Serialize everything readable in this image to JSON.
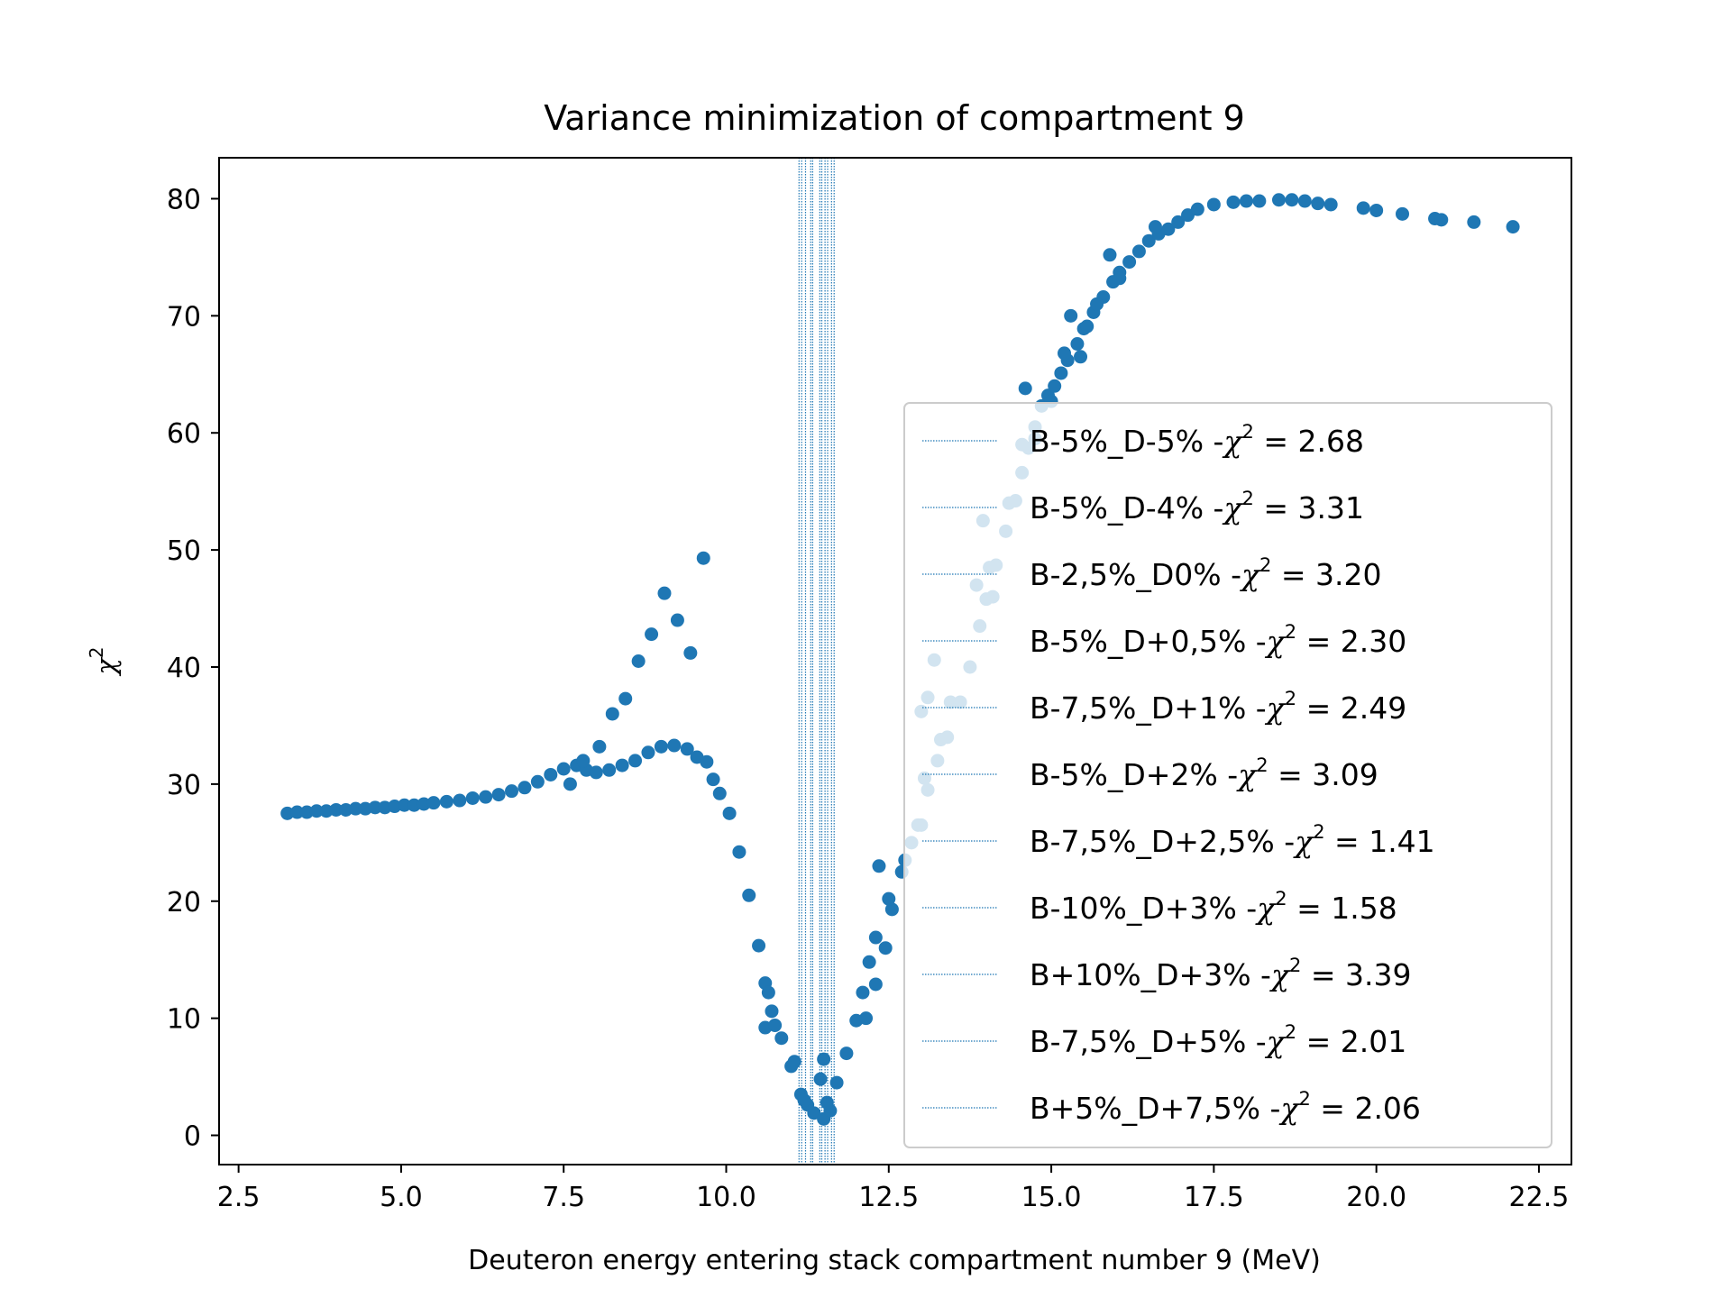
{
  "chart_data": {
    "type": "scatter",
    "title": "Variance minimization of compartment 9",
    "xlabel": "Deuteron energy entering stack compartment number 9 (MeV)",
    "ylabel": "χ2",
    "ylabel_parts": {
      "sym": "χ",
      "sup": "2"
    },
    "xlim": [
      2.2,
      23.0
    ],
    "ylim": [
      -2.5,
      83.5
    ],
    "x_ticks": [
      2.5,
      5.0,
      7.5,
      10.0,
      12.5,
      15.0,
      17.5,
      20.0,
      22.5
    ],
    "x_tick_labels": [
      "2.5",
      "5.0",
      "7.5",
      "10.0",
      "12.5",
      "15.0",
      "17.5",
      "20.0",
      "22.5"
    ],
    "y_ticks": [
      0,
      10,
      20,
      30,
      40,
      50,
      60,
      70,
      80
    ],
    "y_tick_labels": [
      "0",
      "10",
      "20",
      "30",
      "40",
      "50",
      "60",
      "70",
      "80"
    ],
    "grid": false,
    "legend_position": "right",
    "marker_color": "#1f77b4",
    "vline_color": "#1f77b4",
    "vlines": [
      {
        "x": 11.12,
        "label_prefix": "B-5%_D-5% -",
        "chi_value": "2.68"
      },
      {
        "x": 11.16,
        "label_prefix": "B-5%_D-4% -",
        "chi_value": "3.31"
      },
      {
        "x": 11.22,
        "label_prefix": "B-2,5%_D0% -",
        "chi_value": "3.20"
      },
      {
        "x": 11.3,
        "label_prefix": "B-5%_D+0,5% -",
        "chi_value": "2.30"
      },
      {
        "x": 11.33,
        "label_prefix": "B-7,5%_D+1% -",
        "chi_value": "2.49"
      },
      {
        "x": 11.44,
        "label_prefix": "B-5%_D+2% -",
        "chi_value": "3.09"
      },
      {
        "x": 11.47,
        "label_prefix": "B-7,5%_D+2,5% -",
        "chi_value": "1.41"
      },
      {
        "x": 11.52,
        "label_prefix": "B-10%_D+3% -",
        "chi_value": "1.58"
      },
      {
        "x": 11.56,
        "label_prefix": "B+10%_D+3% -",
        "chi_value": "3.39"
      },
      {
        "x": 11.62,
        "label_prefix": "B-7,5%_D+5% -",
        "chi_value": "2.01"
      },
      {
        "x": 11.66,
        "label_prefix": "B+5%_D+7,5% -",
        "chi_value": "2.06"
      }
    ],
    "series": [
      {
        "x": [
          3.25,
          3.4,
          3.55,
          3.7,
          3.85,
          4.0,
          4.15,
          4.3,
          4.45,
          4.6,
          4.75,
          4.9,
          5.05,
          5.2,
          5.35,
          5.5,
          5.7,
          5.9,
          6.1,
          6.3,
          6.5,
          6.7,
          6.9,
          7.1,
          7.3,
          7.5,
          7.7,
          7.85,
          8.0,
          8.2,
          8.4,
          8.6,
          8.8,
          9.0,
          9.2,
          9.4,
          9.55,
          9.7,
          9.8,
          9.9,
          10.05,
          10.2,
          10.35,
          10.5,
          10.6,
          10.7,
          10.85,
          11.0,
          11.15,
          11.25,
          11.35,
          11.5,
          11.6,
          11.7,
          11.85,
          12.0,
          12.1,
          12.2,
          12.3,
          12.45,
          12.55,
          12.7,
          12.85,
          13.0,
          13.1,
          13.25,
          13.4,
          13.6,
          13.75,
          13.9,
          14.0,
          14.15,
          14.3,
          14.45,
          14.55,
          14.65,
          14.75,
          14.85,
          14.95,
          15.05,
          15.15,
          15.25,
          15.4,
          15.5,
          15.65,
          15.8,
          15.95,
          16.05,
          16.2,
          16.35,
          16.5,
          16.65,
          16.8,
          16.95,
          17.1,
          17.25,
          17.5,
          17.8,
          18.0,
          18.2,
          18.5,
          18.7,
          18.9,
          19.1,
          19.3,
          19.8,
          20.0,
          20.4,
          20.9,
          21.0,
          21.5,
          22.1,
          7.6,
          7.8,
          8.05,
          8.25,
          8.45,
          8.65,
          8.85,
          9.05,
          9.25,
          9.45,
          9.65,
          10.6,
          10.65,
          10.75,
          11.05,
          11.2,
          11.45,
          11.5,
          11.55,
          12.15,
          12.3,
          12.35,
          12.5,
          12.75,
          12.95,
          13.05,
          13.2,
          13.45,
          13.85,
          14.05,
          14.35,
          14.55,
          14.6,
          14.75,
          15.0,
          15.3,
          15.45,
          15.55,
          15.7,
          15.9,
          16.05,
          16.6,
          13.0,
          13.1,
          13.3,
          13.95,
          14.1,
          15.2
        ],
        "y": [
          27.5,
          27.6,
          27.6,
          27.7,
          27.7,
          27.8,
          27.8,
          27.9,
          27.9,
          28.0,
          28.0,
          28.1,
          28.2,
          28.2,
          28.3,
          28.4,
          28.5,
          28.6,
          28.8,
          28.9,
          29.1,
          29.4,
          29.7,
          30.2,
          30.8,
          31.3,
          31.6,
          31.2,
          31.0,
          31.2,
          31.6,
          32.0,
          32.7,
          33.2,
          33.3,
          33.0,
          32.3,
          31.9,
          30.4,
          29.2,
          27.5,
          24.2,
          20.5,
          16.2,
          13.0,
          10.6,
          8.3,
          5.9,
          3.5,
          2.6,
          1.9,
          1.4,
          2.1,
          4.5,
          7.0,
          9.8,
          12.2,
          14.8,
          16.9,
          16.0,
          19.3,
          22.5,
          25.0,
          26.5,
          29.5,
          32.0,
          34.0,
          37.0,
          40.0,
          43.5,
          45.8,
          48.7,
          51.6,
          54.2,
          56.6,
          58.7,
          60.5,
          62.3,
          63.2,
          64.0,
          65.1,
          66.2,
          67.6,
          68.9,
          70.3,
          71.6,
          72.9,
          73.7,
          74.6,
          75.5,
          76.4,
          77.0,
          77.4,
          78.0,
          78.6,
          79.1,
          79.5,
          79.7,
          79.8,
          79.8,
          79.9,
          79.9,
          79.8,
          79.6,
          79.5,
          79.2,
          79.0,
          78.7,
          78.3,
          78.2,
          78.0,
          77.6,
          30.0,
          32.0,
          33.2,
          36.0,
          37.3,
          40.5,
          42.8,
          46.3,
          44.0,
          41.2,
          49.3,
          9.2,
          12.2,
          9.4,
          6.3,
          3.0,
          4.8,
          6.5,
          2.8,
          10.0,
          12.9,
          23.0,
          20.2,
          23.5,
          26.5,
          30.5,
          40.6,
          37.0,
          47.0,
          48.5,
          54.0,
          59.0,
          63.8,
          59.5,
          62.7,
          70.0,
          66.5,
          69.1,
          71.0,
          75.2,
          73.2,
          77.6,
          36.2,
          37.4,
          33.8,
          52.5,
          46.0,
          66.8
        ]
      }
    ]
  }
}
